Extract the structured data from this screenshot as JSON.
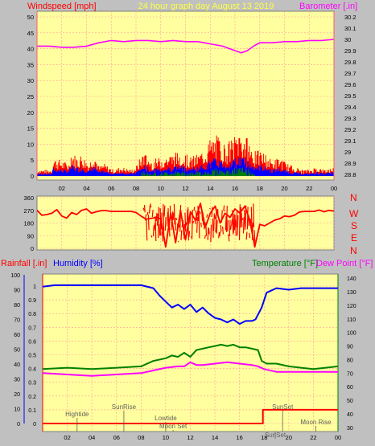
{
  "header": {
    "left_title": "Windspeed [mph]",
    "center_title": "24 hour graph day   August 13 2019",
    "right_title": "Barometer [.in]"
  },
  "colors": {
    "background": "#c0c0c0",
    "plot_bg": "#ffff9f",
    "grid": "#ff9c9c",
    "wind_speed": "#ff0000",
    "wind_avg": "#0000ff",
    "wind_low": "#008000",
    "barometer": "#ff00ff",
    "wind_dir": "#ff0000",
    "rain": "#ff0000",
    "humidity": "#0000ff",
    "temperature": "#008000",
    "dew_point": "#ff00ff",
    "left_title": "#ff0000",
    "center_title": "#ffff40",
    "right_title": "#ff00ff",
    "hum_title": "#0000ff",
    "temp_title": "#008000",
    "dew_title": "#ff00ff",
    "astro_labels": "#606060"
  },
  "chart_data": [
    {
      "type": "line",
      "x_ticks": [
        "02",
        "04",
        "06",
        "08",
        "10",
        "12",
        "14",
        "16",
        "18",
        "20",
        "22",
        "00"
      ],
      "left_axis": {
        "label": "Windspeed [mph]",
        "ticks": [
          "0",
          "5",
          "10",
          "15",
          "20",
          "25",
          "30",
          "35",
          "40",
          "45",
          "50"
        ],
        "ylim": [
          0,
          50
        ]
      },
      "right_axis": {
        "label": "Barometer [.in]",
        "ticks": [
          "28.8",
          "28.9",
          "29",
          "29.1",
          "29.2",
          "29.3",
          "29.4",
          "29.5",
          "29.6",
          "29.7",
          "29.8",
          "29.9",
          "30",
          "30.1",
          "30.2"
        ],
        "ylim": [
          28.75,
          30.25
        ]
      },
      "series": [
        {
          "name": "Windspeed",
          "hours": [
            0,
            1.2,
            1.3,
            2.6,
            2.7,
            3.3,
            3.6,
            4.2,
            4.6,
            5.0,
            5.4,
            6.2,
            6.8,
            7.6,
            8.0,
            8.6,
            9.2,
            10.0,
            10.8,
            11.6,
            12.4,
            13.0,
            13.6,
            14.0,
            14.6,
            15.2,
            15.8,
            16.4,
            16.8,
            17.2,
            17.4,
            18.2,
            19.0,
            19.6,
            20.2,
            20.8,
            21.4,
            22.0,
            22.6,
            23.2,
            24.0
          ],
          "values": [
            2,
            2,
            6,
            4,
            8,
            6,
            7,
            4,
            8,
            3,
            4,
            2,
            3,
            2,
            3,
            8,
            5,
            6,
            7,
            8,
            6,
            7,
            9,
            12,
            13,
            10,
            12,
            15,
            13,
            11,
            8,
            8,
            5,
            6,
            4,
            3,
            2,
            2,
            3,
            2,
            3
          ]
        },
        {
          "name": "Barometer",
          "hours": [
            0,
            1,
            2,
            3,
            4,
            5,
            6,
            7,
            8,
            9,
            10,
            11,
            12,
            13,
            14,
            15,
            15.5,
            16,
            16.5,
            17,
            17.5,
            18,
            19,
            20,
            21,
            22,
            23,
            24
          ],
          "values": [
            29.94,
            29.94,
            29.93,
            29.93,
            29.94,
            29.97,
            29.99,
            29.98,
            29.99,
            29.99,
            29.98,
            29.99,
            29.98,
            29.98,
            29.96,
            29.94,
            29.92,
            29.9,
            29.88,
            29.9,
            29.94,
            29.97,
            29.97,
            29.98,
            29.98,
            29.99,
            29.99,
            30.0
          ]
        }
      ]
    },
    {
      "type": "line",
      "x_ticks": [
        "02",
        "04",
        "06",
        "08",
        "10",
        "12",
        "14",
        "16",
        "18",
        "20",
        "22",
        "00"
      ],
      "left_axis": {
        "ticks": [
          "0",
          "90",
          "180",
          "270",
          "360"
        ],
        "ylim": [
          0,
          360
        ]
      },
      "right_axis": {
        "ticks": [
          "N",
          "W",
          "S",
          "E",
          "N"
        ]
      },
      "series": [
        {
          "name": "Wind Direction",
          "hours": [
            0,
            0.4,
            0.8,
            1.2,
            1.6,
            2.0,
            2.4,
            2.8,
            3.2,
            3.6,
            4.0,
            4.4,
            4.8,
            5.2,
            5.6,
            6.0,
            6.4,
            6.8,
            7.2,
            7.6,
            8.0,
            8.4,
            8.8,
            9.2,
            9.6,
            10.0,
            10.4,
            10.8,
            11.2,
            11.6,
            12.0,
            12.4,
            12.8,
            13.2,
            13.6,
            14.0,
            14.4,
            14.8,
            15.2,
            15.6,
            16.0,
            16.4,
            16.8,
            17.2,
            17.6,
            18.0,
            18.4,
            18.8,
            19.2,
            19.6,
            20.0,
            20.4,
            20.8,
            21.2,
            21.6,
            22.0,
            22.4,
            22.8,
            23.2,
            23.6,
            24.0
          ],
          "values": [
            270,
            235,
            240,
            250,
            275,
            230,
            215,
            255,
            240,
            270,
            280,
            250,
            260,
            268,
            268,
            262,
            262,
            262,
            262,
            262,
            255,
            230,
            208,
            212,
            220,
            210,
            10,
            250,
            40,
            270,
            60,
            260,
            200,
            320,
            150,
            250,
            300,
            180,
            250,
            220,
            280,
            250,
            300,
            200,
            10,
            170,
            160,
            180,
            200,
            210,
            230,
            225,
            235,
            258,
            262,
            262,
            262,
            272,
            260,
            270,
            265
          ]
        }
      ]
    },
    {
      "type": "line",
      "x_ticks": [
        "02",
        "04",
        "06",
        "08",
        "10",
        "12",
        "14",
        "16",
        "18",
        "20",
        "22",
        "00"
      ],
      "rain_axis": {
        "label": "Rainfall [.in]",
        "ticks": [
          "0",
          "0.1",
          "0.2",
          "0.3",
          "0.4",
          "0.5",
          "0.6",
          "0.7",
          "0.8",
          "0.9",
          "1"
        ],
        "ylim": [
          0,
          1.0
        ]
      },
      "humidity_axis": {
        "label": "Humidity [%]",
        "ticks": [
          "0",
          "10",
          "20",
          "30",
          "40",
          "50",
          "60",
          "70",
          "80",
          "90",
          "100"
        ],
        "ylim": [
          0,
          100
        ]
      },
      "temp_axis": {
        "label": "Temperature [°F]",
        "ticks": [
          "30",
          "40",
          "50",
          "60",
          "70",
          "80",
          "90",
          "100",
          "110",
          "120",
          "130",
          "140"
        ],
        "ylim": [
          27,
          143
        ]
      },
      "dewpoint_label": "Dew Point [°F]",
      "series": [
        {
          "name": "Rainfall",
          "hours": [
            0,
            17.9,
            17.9,
            24.0
          ],
          "values": [
            0.0,
            0.0,
            0.1,
            0.1
          ]
        },
        {
          "name": "Humidity",
          "hours": [
            0,
            1,
            2,
            3,
            4,
            5,
            6,
            7,
            8,
            9,
            9.5,
            10,
            10.5,
            11,
            11.5,
            12,
            12.5,
            13,
            13.5,
            14,
            14.5,
            15,
            15.5,
            16,
            16.5,
            17,
            17.3,
            17.8,
            18.2,
            19,
            20,
            21,
            22,
            23,
            24
          ],
          "values": [
            92,
            93,
            93,
            93,
            93,
            93,
            93,
            93,
            93,
            91,
            86,
            82,
            78,
            80,
            77,
            80,
            75,
            78,
            74,
            71,
            70,
            68,
            70,
            67,
            69,
            69,
            70,
            78,
            88,
            91,
            90,
            91,
            91,
            91,
            91
          ]
        },
        {
          "name": "Temperature",
          "hours": [
            0,
            2,
            4,
            6,
            8,
            9,
            10,
            10.5,
            11,
            11.5,
            12,
            12.5,
            13,
            13.5,
            14,
            14.5,
            15,
            15.5,
            16,
            16.5,
            17,
            17.5,
            17.8,
            18.2,
            19,
            20,
            21,
            22,
            23,
            24
          ],
          "values": [
            73,
            74,
            73,
            74,
            75,
            79,
            81,
            83,
            82,
            85,
            82,
            87,
            88,
            89,
            90,
            91,
            90,
            91,
            89,
            89,
            88,
            87,
            79,
            77,
            77,
            75,
            74,
            73,
            74,
            75
          ]
        },
        {
          "name": "Dew Point",
          "hours": [
            0,
            2,
            4,
            6,
            8,
            9,
            10,
            11,
            11.5,
            12,
            12.5,
            13,
            14,
            15,
            16,
            17,
            17.5,
            18,
            19,
            20,
            21,
            22,
            23,
            24
          ],
          "values": [
            70,
            69,
            68,
            69,
            70,
            72,
            74,
            75,
            75,
            78,
            76,
            76,
            77,
            78,
            77,
            76,
            75,
            73,
            71,
            71,
            71,
            71,
            71,
            71
          ]
        }
      ],
      "astro_events": [
        {
          "label": "Hightide",
          "hour": 2.8
        },
        {
          "label": "SunRise",
          "hour": 6.6
        },
        {
          "label": "Lowtide",
          "hour": 10.0
        },
        {
          "label": "Moon Set",
          "hour": 10.6
        },
        {
          "label": "SunSet",
          "hour": 19.5
        },
        {
          "label": "SunSet",
          "hour": 18.9
        },
        {
          "label": "Moon Rise",
          "hour": 22.2
        }
      ]
    }
  ]
}
